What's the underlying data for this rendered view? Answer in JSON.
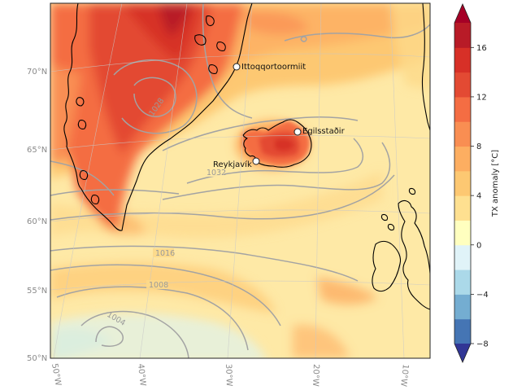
{
  "map": {
    "latitude_labels": [
      "70°N",
      "65°N",
      "60°N",
      "55°N",
      "50°N"
    ],
    "longitude_labels": [
      "50°W",
      "40°W",
      "30°W",
      "20°W",
      "10°W"
    ],
    "isobar_labels": [
      "1032",
      "1016",
      "1008",
      "1004",
      "1028"
    ],
    "places": [
      {
        "name": "Ittoqqortoormiit"
      },
      {
        "name": "Egilsstaðir"
      },
      {
        "name": "Reykjavík"
      }
    ],
    "land_outline_color": "#000000",
    "isobar_color": "#a3a3a3"
  },
  "colorbar": {
    "label": "TX anomaly [°C]",
    "ticks": [
      "16",
      "12",
      "8",
      "4",
      "0",
      "−4",
      "−8"
    ],
    "range": [
      -8,
      18
    ],
    "colors": [
      "#313695",
      "#4575b4",
      "#74add1",
      "#abd9e9",
      "#e0f3f8",
      "#ffffbf",
      "#fee090",
      "#fdc872",
      "#fdae61",
      "#f98e52",
      "#f46d43",
      "#e34a33",
      "#d73027",
      "#b81b27",
      "#a50026"
    ]
  }
}
